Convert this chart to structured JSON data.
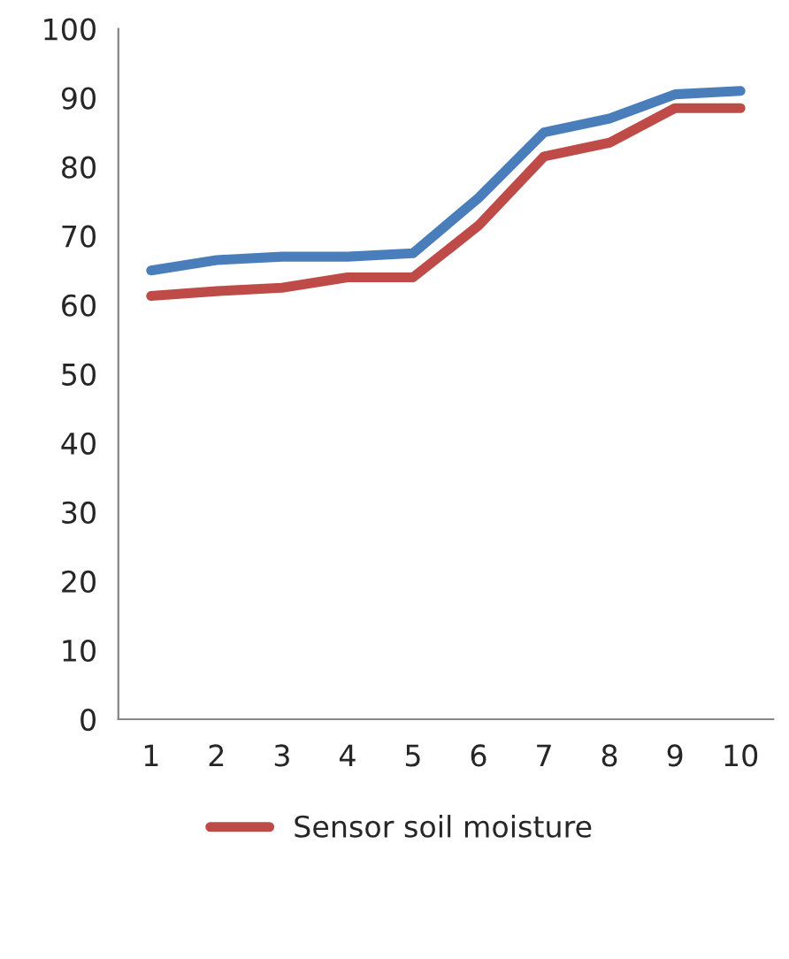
{
  "chart_data": {
    "type": "line",
    "categories": [
      "1",
      "2",
      "3",
      "4",
      "5",
      "6",
      "7",
      "8",
      "9",
      "10"
    ],
    "series": [
      {
        "color": "#4a7ebb",
        "values": [
          65,
          66.5,
          67,
          67,
          67.5,
          75.5,
          85,
          87,
          90.5,
          91
        ]
      },
      {
        "name": "Sensor soil moisture",
        "color": "#be4b48",
        "values": [
          61.3,
          62,
          62.5,
          64,
          64,
          71.5,
          81.5,
          83.5,
          88.5,
          88.5
        ]
      }
    ],
    "ylim": [
      0,
      100
    ],
    "yticks": [
      0,
      10,
      20,
      30,
      40,
      50,
      60,
      70,
      80,
      90,
      100
    ],
    "grid": false,
    "legend": "bottom",
    "marker": "none",
    "line_style": "solid"
  }
}
